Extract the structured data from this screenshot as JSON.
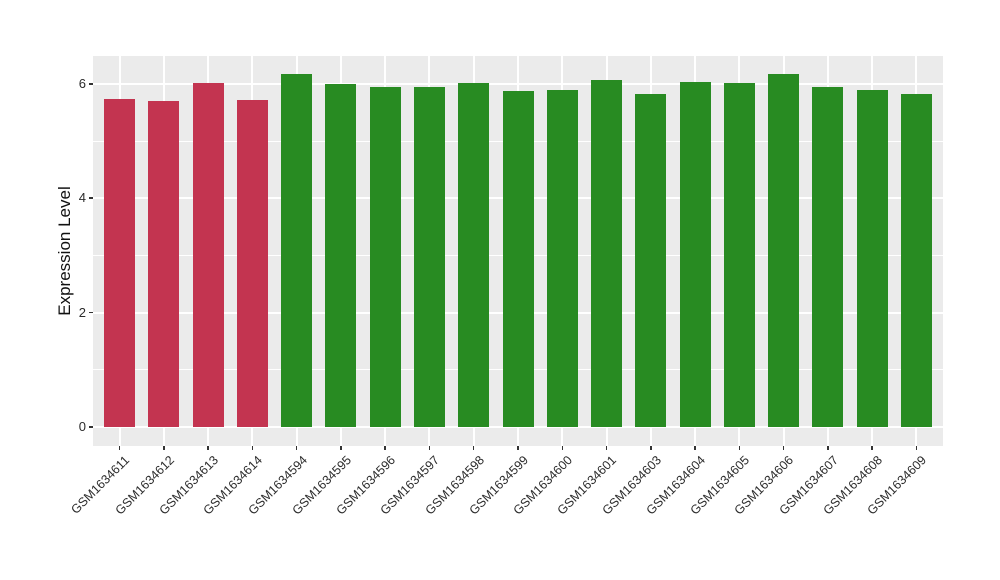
{
  "chart_data": {
    "type": "bar",
    "title": "",
    "xlabel": "",
    "ylabel": "Expression Level",
    "categories": [
      "GSM1634611",
      "GSM1634612",
      "GSM1634613",
      "GSM1634614",
      "GSM1634594",
      "GSM1634595",
      "GSM1634596",
      "GSM1634597",
      "GSM1634598",
      "GSM1634599",
      "GSM1634600",
      "GSM1634601",
      "GSM1634603",
      "GSM1634604",
      "GSM1634605",
      "GSM1634606",
      "GSM1634607",
      "GSM1634608",
      "GSM1634609"
    ],
    "values": [
      5.73,
      5.7,
      6.02,
      5.71,
      6.18,
      6.0,
      5.94,
      5.94,
      6.01,
      5.87,
      5.9,
      6.07,
      5.82,
      6.03,
      6.01,
      6.17,
      5.95,
      5.9,
      5.82
    ],
    "bar_colors": [
      "#C33450",
      "#C33450",
      "#C33450",
      "#C33450",
      "#288B22",
      "#288B22",
      "#288B22",
      "#288B22",
      "#288B22",
      "#288B22",
      "#288B22",
      "#288B22",
      "#288B22",
      "#288B22",
      "#288B22",
      "#288B22",
      "#288B22",
      "#288B22",
      "#288B22"
    ],
    "yticks": [
      0,
      2,
      4,
      6
    ],
    "yminor": [
      1,
      3,
      5
    ],
    "ylim": [
      -0.33,
      6.49
    ],
    "grid": true,
    "legend": "none",
    "panel_bg": "#EBEBEB",
    "grid_color": "#FFFFFF",
    "axis_text_color": "#2b2b2b",
    "tick_color": "#333333"
  }
}
